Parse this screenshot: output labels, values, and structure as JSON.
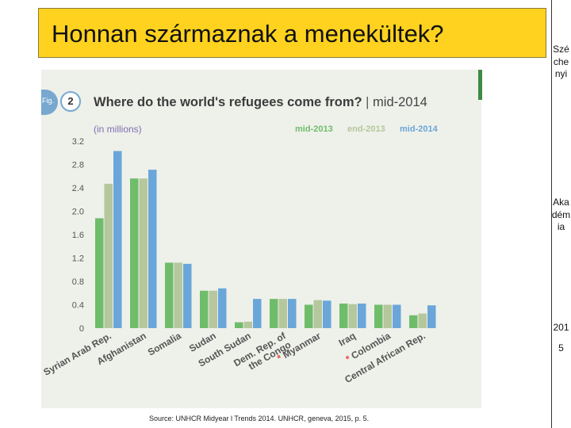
{
  "slide": {
    "title": "Honnan származnak a menekültek?",
    "source": "Source: UNHCR Midyear l Trends 2014. UNHCR, geneva, 2015, p. 5."
  },
  "sidebar": {
    "lines": [
      "Széchenyi",
      "Akadémia",
      "2015"
    ]
  },
  "figure": {
    "badge": "Fig.",
    "number": "2",
    "title_main": "Where do the world's refugees come from?",
    "title_sep": " | ",
    "title_period": "mid-2014",
    "unit": "(in millions)"
  },
  "colors": {
    "mid-2013": "#6fbd6a",
    "end-2013": "#b5c79c",
    "mid-2014": "#6aa6d9",
    "asterisk": "#e34a3b",
    "axis_text": "#555555"
  },
  "chart_data": {
    "type": "bar",
    "title": "Where do the world's refugees come from? | mid-2014",
    "ylabel": "(in millions)",
    "ylim": [
      0,
      3.2
    ],
    "yticks": [
      0,
      0.4,
      0.8,
      1.2,
      1.6,
      2.0,
      2.4,
      2.8,
      3.2
    ],
    "ytick_labels": [
      "0",
      "0.4",
      "0.8",
      "1.2",
      "1.6",
      "2.0",
      "2.4",
      "2.8",
      "3.2"
    ],
    "grid": false,
    "legend": "top-right",
    "categories": [
      "Syrian Arab Rep.",
      "Afghanistan",
      "Somalia",
      "Sudan",
      "South Sudan",
      "Dem. Rep. of the Congo",
      "Myanmar",
      "Iraq",
      "Colombia",
      "Central African Rep."
    ],
    "asterisk_categories": [
      "Myanmar",
      "Colombia"
    ],
    "series": [
      {
        "name": "mid-2013",
        "values": [
          1.88,
          2.56,
          1.12,
          0.64,
          0.1,
          0.5,
          0.4,
          0.42,
          0.4,
          0.22
        ]
      },
      {
        "name": "end-2013",
        "values": [
          2.47,
          2.56,
          1.12,
          0.64,
          0.11,
          0.5,
          0.48,
          0.41,
          0.4,
          0.25
        ]
      },
      {
        "name": "mid-2014",
        "values": [
          3.03,
          2.71,
          1.1,
          0.68,
          0.5,
          0.5,
          0.47,
          0.42,
          0.4,
          0.39
        ]
      }
    ]
  }
}
